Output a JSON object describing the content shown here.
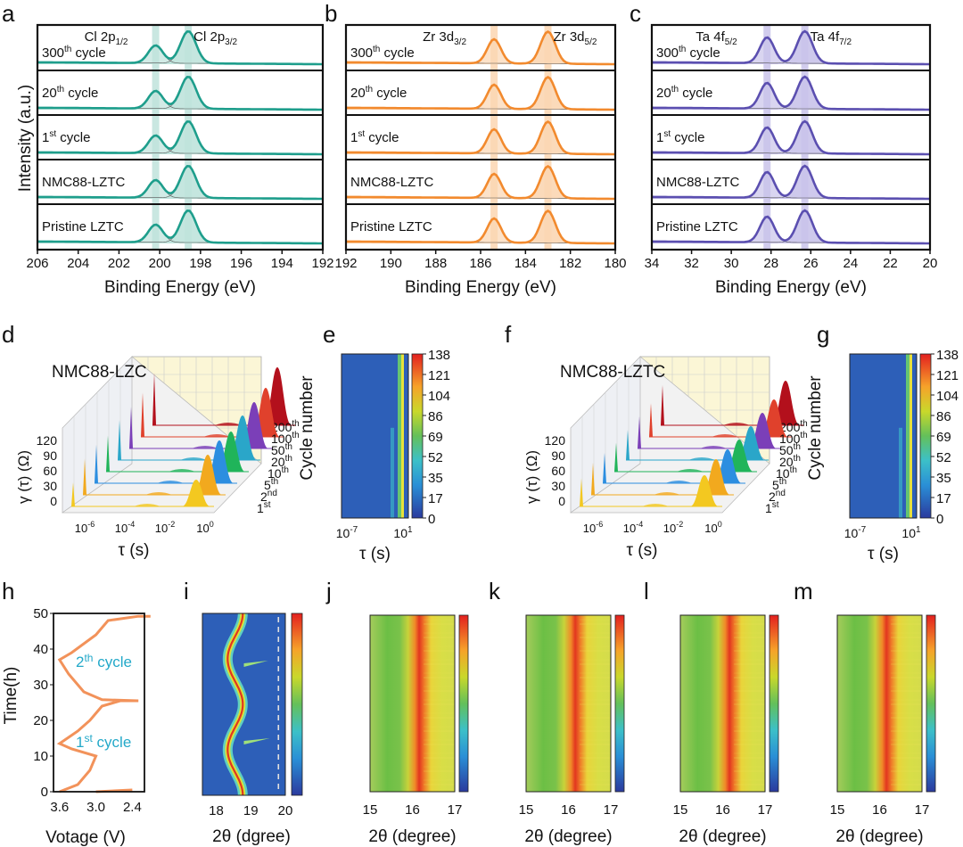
{
  "chart_data": [
    {
      "panel": "a",
      "type": "line",
      "xlabel": "Binding Energy (eV)",
      "ylabel": "Intensity (a.u.)",
      "xlim": [
        206,
        192
      ],
      "xticks": [
        "206",
        "204",
        "202",
        "200",
        "198",
        "196",
        "194",
        "192"
      ],
      "peaks": [
        {
          "label": "Cl 2p",
          "sub": "1/2",
          "position": 200.2
        },
        {
          "label": "Cl 2p",
          "sub": "3/2",
          "position": 198.6
        }
      ],
      "traces": [
        {
          "label": "300",
          "sup": "th",
          "suffix": " cycle",
          "intensities": [
            0.55,
            1.0
          ]
        },
        {
          "label": "20",
          "sup": "th",
          "suffix": " cycle",
          "intensities": [
            0.55,
            1.0
          ]
        },
        {
          "label": "1",
          "sup": "st",
          "suffix": " cycle",
          "intensities": [
            0.55,
            1.0
          ]
        },
        {
          "label": "NMC88-LZTC",
          "sup": "",
          "suffix": "",
          "intensities": [
            0.55,
            1.0
          ]
        },
        {
          "label": "Pristine LZTC",
          "sup": "",
          "suffix": "",
          "intensities": [
            0.55,
            1.0
          ]
        }
      ],
      "color": "#1e9e8c",
      "fill": "#bfe3dc"
    },
    {
      "panel": "b",
      "type": "line",
      "xlabel": "Binding Energy (eV)",
      "xlim": [
        192,
        180
      ],
      "xticks": [
        "192",
        "190",
        "188",
        "186",
        "184",
        "182",
        "180"
      ],
      "peaks": [
        {
          "label": "Zr 3d",
          "sub": "3/2",
          "position": 185.4
        },
        {
          "label": "Zr 3d",
          "sub": "5/2",
          "position": 183.0
        }
      ],
      "traces": [
        {
          "label": "300",
          "sup": "th",
          "suffix": " cycle",
          "intensities": [
            0.75,
            1.0
          ]
        },
        {
          "label": "20",
          "sup": "th",
          "suffix": " cycle",
          "intensities": [
            0.75,
            1.0
          ]
        },
        {
          "label": "1",
          "sup": "st",
          "suffix": " cycle",
          "intensities": [
            0.75,
            1.0
          ]
        },
        {
          "label": "NMC88-LZTC",
          "sup": "",
          "suffix": "",
          "intensities": [
            0.75,
            1.0
          ]
        },
        {
          "label": "Pristine LZTC",
          "sup": "",
          "suffix": "",
          "intensities": [
            0.75,
            1.0
          ]
        }
      ],
      "color": "#f28a2e",
      "fill": "#fbd6b2"
    },
    {
      "panel": "c",
      "type": "line",
      "xlabel": "Binding Energy (eV)",
      "xlim": [
        34,
        20
      ],
      "xticks": [
        "34",
        "32",
        "30",
        "28",
        "26",
        "24",
        "22",
        "20"
      ],
      "peaks": [
        {
          "label": "Ta 4f",
          "sub": "5/2",
          "position": 28.2
        },
        {
          "label": "Ta 4f",
          "sub": "7/2",
          "position": 26.3
        }
      ],
      "traces": [
        {
          "label": "300",
          "sup": "th",
          "suffix": " cycle",
          "intensities": [
            0.8,
            1.0
          ]
        },
        {
          "label": "20",
          "sup": "th",
          "suffix": " cycle",
          "intensities": [
            0.8,
            1.0
          ]
        },
        {
          "label": "1",
          "sup": "st",
          "suffix": " cycle",
          "intensities": [
            0.8,
            1.0
          ]
        },
        {
          "label": "NMC88-LZTC",
          "sup": "",
          "suffix": "",
          "intensities": [
            0.8,
            1.0
          ]
        },
        {
          "label": "Pristine LZTC",
          "sup": "",
          "suffix": "",
          "intensities": [
            0.8,
            1.0
          ]
        }
      ],
      "color": "#5b4fb0",
      "fill": "#c9c3ea"
    },
    {
      "panel": "d",
      "type": "area",
      "title": "NMC88-LZC",
      "xlabel": "τ (s)",
      "ylabel": "γ (τ) (Ω)",
      "zlabel": "Cycle number",
      "yticks": [
        "120",
        "90",
        "60",
        "30",
        "0"
      ],
      "xticks": [
        {
          "base": "10",
          "exp": "-6"
        },
        {
          "base": "10",
          "exp": "-4"
        },
        {
          "base": "10",
          "exp": "-2"
        },
        {
          "base": "10",
          "exp": "0"
        }
      ],
      "cycles": [
        {
          "n": "1",
          "sup": "st"
        },
        {
          "n": "2",
          "sup": "nd"
        },
        {
          "n": "5",
          "sup": "th"
        },
        {
          "n": "10",
          "sup": "th"
        },
        {
          "n": "20",
          "sup": "th"
        },
        {
          "n": "50",
          "sup": "th"
        },
        {
          "n": "100",
          "sup": "th"
        },
        {
          "n": "200",
          "sup": "th"
        }
      ],
      "series_colors": [
        "#f3c820",
        "#f2a91e",
        "#2c8ee0",
        "#20b45a",
        "#2aa6c9",
        "#7b3fb8",
        "#e0412c",
        "#b3101c"
      ],
      "peak_heights": [
        30,
        45,
        48,
        45,
        50,
        52,
        55,
        65
      ]
    },
    {
      "panel": "e",
      "type": "heatmap",
      "xlabel": "τ (s)",
      "xticks": [
        {
          "base": "10",
          "exp": "-7"
        },
        {
          "base": "10",
          "exp": "1"
        }
      ],
      "colorbar": [
        "138",
        "121",
        "104",
        "86",
        "69",
        "52",
        "35",
        "17",
        "0"
      ]
    },
    {
      "panel": "f",
      "type": "area",
      "title": "NMC88-LZTC",
      "xlabel": "τ (s)",
      "ylabel": "γ (τ) (Ω)",
      "zlabel": "Cycle number",
      "yticks": [
        "120",
        "90",
        "60",
        "30",
        "0"
      ],
      "xticks": [
        {
          "base": "10",
          "exp": "-6"
        },
        {
          "base": "10",
          "exp": "-4"
        },
        {
          "base": "10",
          "exp": "-2"
        },
        {
          "base": "10",
          "exp": "0"
        }
      ],
      "cycles": [
        {
          "n": "1",
          "sup": "st"
        },
        {
          "n": "2",
          "sup": "nd"
        },
        {
          "n": "5",
          "sup": "th"
        },
        {
          "n": "10",
          "sup": "th"
        },
        {
          "n": "20",
          "sup": "th"
        },
        {
          "n": "50",
          "sup": "th"
        },
        {
          "n": "100",
          "sup": "th"
        },
        {
          "n": "200",
          "sup": "th"
        }
      ],
      "series_colors": [
        "#f3c820",
        "#f2a91e",
        "#2c8ee0",
        "#20b45a",
        "#2aa6c9",
        "#7b3fb8",
        "#e0412c",
        "#b3101c"
      ],
      "peak_heights": [
        35,
        40,
        38,
        36,
        38,
        40,
        42,
        50
      ]
    },
    {
      "panel": "g",
      "type": "heatmap",
      "xlabel": "τ (s)",
      "xticks": [
        {
          "base": "10",
          "exp": "-7"
        },
        {
          "base": "10",
          "exp": "1"
        }
      ],
      "colorbar": [
        "138",
        "121",
        "104",
        "86",
        "69",
        "52",
        "35",
        "17",
        "0"
      ]
    },
    {
      "panel": "h",
      "type": "line",
      "xlabel": "Votage (V)",
      "ylabel": "Time(h)",
      "xticks": [
        "3.6",
        "3.0",
        "2.4"
      ],
      "yticks": [
        "50",
        "40",
        "30",
        "20",
        "10",
        "0"
      ],
      "ylim": [
        0,
        50
      ],
      "annotations": [
        {
          "n": "2",
          "sup": "th",
          "suffix": " cycle"
        },
        {
          "n": "1",
          "sup": "st",
          "suffix": " cycle"
        }
      ],
      "color": "#f2925a"
    },
    {
      "panel": "i",
      "type": "heatmap",
      "xlabel": "2θ (dgree)",
      "xticks": [
        "18",
        "19",
        "20"
      ],
      "xlim": [
        17.6,
        20.0
      ]
    },
    {
      "panel": "j",
      "type": "heatmap",
      "xlabel": "2θ (degree)",
      "xticks": [
        "15",
        "16",
        "17"
      ],
      "xlim": [
        15,
        17
      ],
      "peak": 16.2
    },
    {
      "panel": "k",
      "type": "heatmap",
      "xlabel": "2θ (degree)",
      "xticks": [
        "15",
        "16",
        "17"
      ],
      "xlim": [
        15,
        17
      ],
      "peak": 16.2
    },
    {
      "panel": "l",
      "type": "heatmap",
      "xlabel": "2θ (degree)",
      "xticks": [
        "15",
        "16",
        "17"
      ],
      "xlim": [
        15,
        17
      ],
      "peak": 16.2
    },
    {
      "panel": "m",
      "type": "heatmap",
      "xlabel": "2θ (degree)",
      "xticks": [
        "15",
        "16",
        "17"
      ],
      "xlim": [
        15,
        17
      ],
      "peak": 16.2
    }
  ]
}
